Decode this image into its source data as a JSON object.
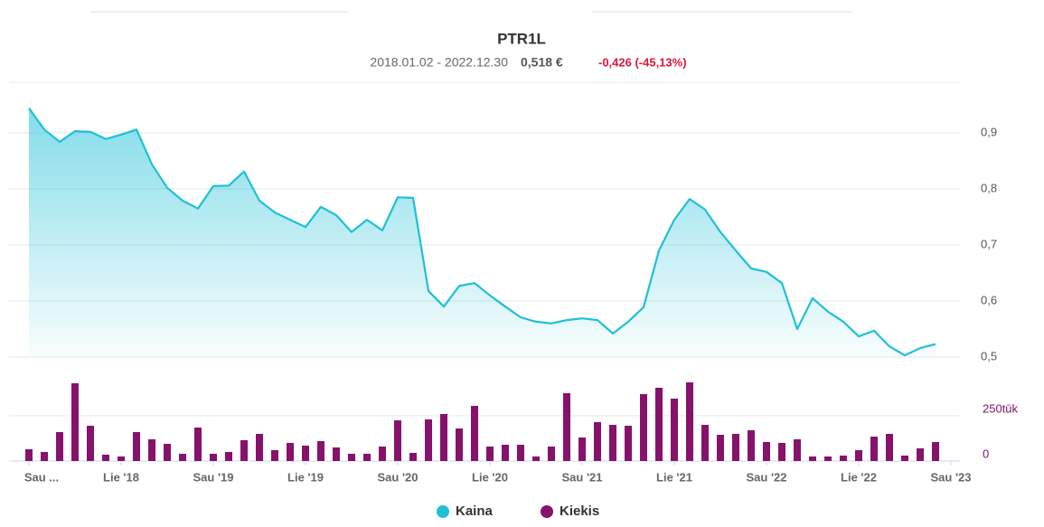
{
  "chart_data": {
    "type": "line",
    "title": "PTR1L",
    "period": "2018.01.02 - 2022.12.30",
    "last_price": "0,518 €",
    "change": "-0,426 (-45,13%)",
    "change_color": "#e0173c",
    "xlim": [
      0,
      60
    ],
    "xticks": [
      {
        "value": 0,
        "label": "Sau ..."
      },
      {
        "value": 6,
        "label": "Lie '18"
      },
      {
        "value": 12,
        "label": "Sau '19"
      },
      {
        "value": 18,
        "label": "Lie '19"
      },
      {
        "value": 24,
        "label": "Sau '20"
      },
      {
        "value": 30,
        "label": "Lie '20"
      },
      {
        "value": 36,
        "label": "Sau '21"
      },
      {
        "value": 42,
        "label": "Lie '21"
      },
      {
        "value": 48,
        "label": "Sau '22"
      },
      {
        "value": 54,
        "label": "Lie '22"
      },
      {
        "value": 60,
        "label": "Sau '23"
      }
    ],
    "ylim": [
      0.5,
      1.0
    ],
    "yticks": [
      {
        "value": 0.5,
        "label": "0,5"
      },
      {
        "value": 0.6,
        "label": "0,6"
      },
      {
        "value": 0.7,
        "label": "0,7"
      },
      {
        "value": 0.8,
        "label": "0,8"
      },
      {
        "value": 0.9,
        "label": "0,9"
      }
    ],
    "y2lim": [
      0,
      500000
    ],
    "y2ticks": [
      0,
      {
        "value": 250000,
        "label": "250tūk"
      }
    ],
    "grid": true,
    "legend": "bottom",
    "series": [
      {
        "name": "Kaina",
        "color": "#1ec0d6",
        "type": "line",
        "values": [
          0.944,
          0.906,
          0.884,
          0.903,
          0.902,
          0.889,
          0.897,
          0.906,
          0.844,
          0.802,
          0.779,
          0.765,
          0.805,
          0.806,
          0.831,
          0.779,
          0.758,
          0.745,
          0.732,
          0.768,
          0.753,
          0.723,
          0.745,
          0.726,
          0.785,
          0.784,
          0.618,
          0.59,
          0.627,
          0.632,
          0.61,
          0.59,
          0.571,
          0.563,
          0.56,
          0.566,
          0.569,
          0.566,
          0.542,
          0.563,
          0.589,
          0.69,
          0.745,
          0.782,
          0.763,
          0.723,
          0.69,
          0.658,
          0.652,
          0.632,
          0.55,
          0.605,
          0.581,
          0.563,
          0.537,
          0.547,
          0.519,
          0.503,
          0.516,
          0.523
        ]
      },
      {
        "name": "Kiekis",
        "color": "#86126c",
        "type": "bar",
        "axis": "y2",
        "values": [
          65000,
          50000,
          160000,
          430000,
          195000,
          35000,
          25000,
          160000,
          120000,
          95000,
          40000,
          185000,
          40000,
          50000,
          115000,
          150000,
          60000,
          100000,
          85000,
          110000,
          75000,
          40000,
          40000,
          80000,
          225000,
          45000,
          230000,
          260000,
          180000,
          305000,
          80000,
          90000,
          90000,
          25000,
          80000,
          375000,
          130000,
          215000,
          200000,
          195000,
          370000,
          405000,
          345000,
          435000,
          200000,
          145000,
          150000,
          170000,
          105000,
          100000,
          120000,
          25000,
          25000,
          30000,
          60000,
          135000,
          150000,
          30000,
          70000,
          105000
        ]
      }
    ]
  }
}
